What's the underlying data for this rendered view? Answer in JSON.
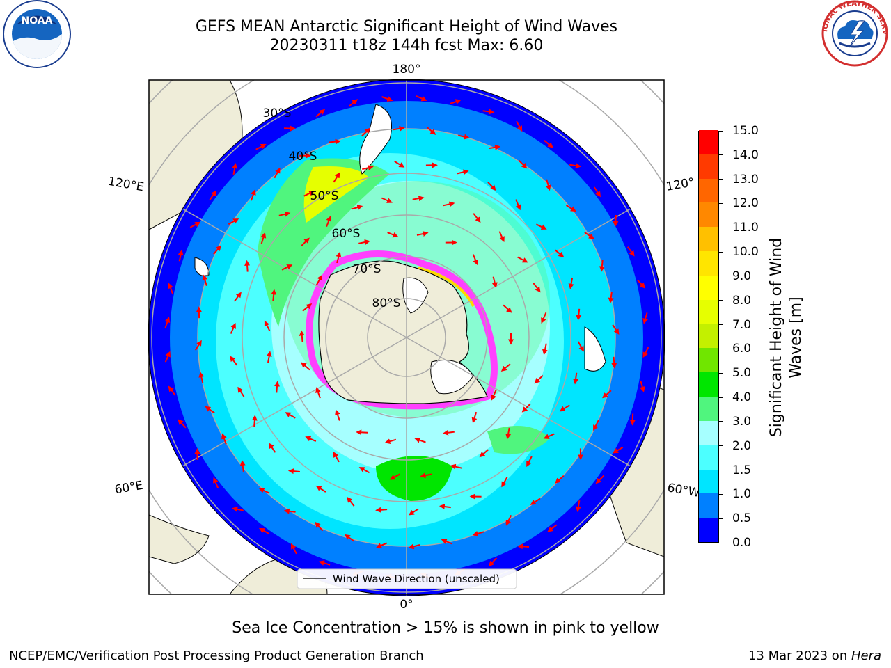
{
  "title": {
    "line1": "GEFS MEAN Antarctic Significant Height of Wind Waves",
    "line2": "20230311 t18z 144h fcst   Max: 6.60"
  },
  "map": {
    "projection": "south-polar-stereographic",
    "lon_labels": [
      "180°",
      "120°E",
      "120°",
      "60°E",
      "60°W",
      "0°"
    ],
    "lat_labels": [
      "30°S",
      "40°S",
      "50°S",
      "60°S",
      "70°S",
      "80°S"
    ],
    "legend_label": "Wind Wave Direction (unscaled)",
    "arrow_color": "#ff0000",
    "land_color": "#efedd9"
  },
  "colorbar": {
    "title": "Significant Height of Wind\nWaves [m]",
    "ticks": [
      "0.0",
      "0.5",
      "1.0",
      "1.5",
      "2.0",
      "3.0",
      "4.0",
      "5.0",
      "6.0",
      "7.0",
      "8.0",
      "9.0",
      "10.0",
      "11.0",
      "12.0",
      "13.0",
      "14.0",
      "15.0"
    ],
    "colors": [
      "#0000ff",
      "#0080ff",
      "#00e5ff",
      "#4cffff",
      "#a6ffff",
      "#50f57e",
      "#00e600",
      "#70e600",
      "#c3f000",
      "#e6ff00",
      "#ffff00",
      "#ffe500",
      "#ffc000",
      "#ff8800",
      "#ff6600",
      "#ff3a00",
      "#ff0000"
    ]
  },
  "logos": {
    "noaa": {
      "text": "NOAA"
    },
    "nws": {
      "text": "NATIONAL WEATHER SERVICE"
    }
  },
  "footer": {
    "note": "Sea Ice Concentration > 15% is shown in pink to yellow",
    "left": "NCEP/EMC/Verification Post Processing Product Generation Branch",
    "right_date": "13 Mar 2023 on ",
    "right_host": "Hera"
  }
}
